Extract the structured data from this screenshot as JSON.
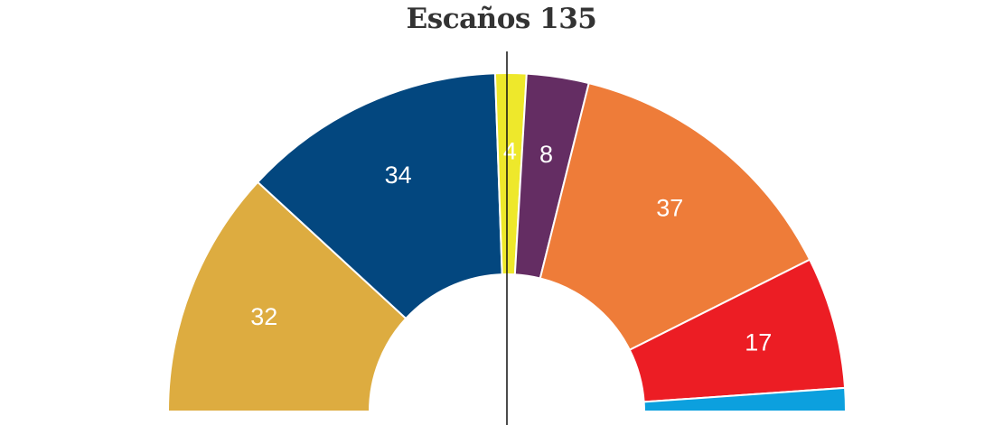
{
  "title": "Escaños 135",
  "chart_data": {
    "type": "pie",
    "variant": "hemicycle",
    "title": "Escaños 135",
    "total": 135,
    "majority_line": true,
    "segments": [
      {
        "label": "32",
        "value": 32,
        "color": "#DDAC40"
      },
      {
        "label": "34",
        "value": 34,
        "color": "#03477F"
      },
      {
        "label": "4",
        "value": 4,
        "color": "#EEE82B"
      },
      {
        "label": "8",
        "value": 8,
        "color": "#642D63"
      },
      {
        "label": "37",
        "value": 37,
        "color": "#EE7C39"
      },
      {
        "label": "17",
        "value": 17,
        "color": "#EC1D24"
      },
      {
        "label": "",
        "value": 3,
        "color": "#0CA0DE"
      }
    ]
  }
}
